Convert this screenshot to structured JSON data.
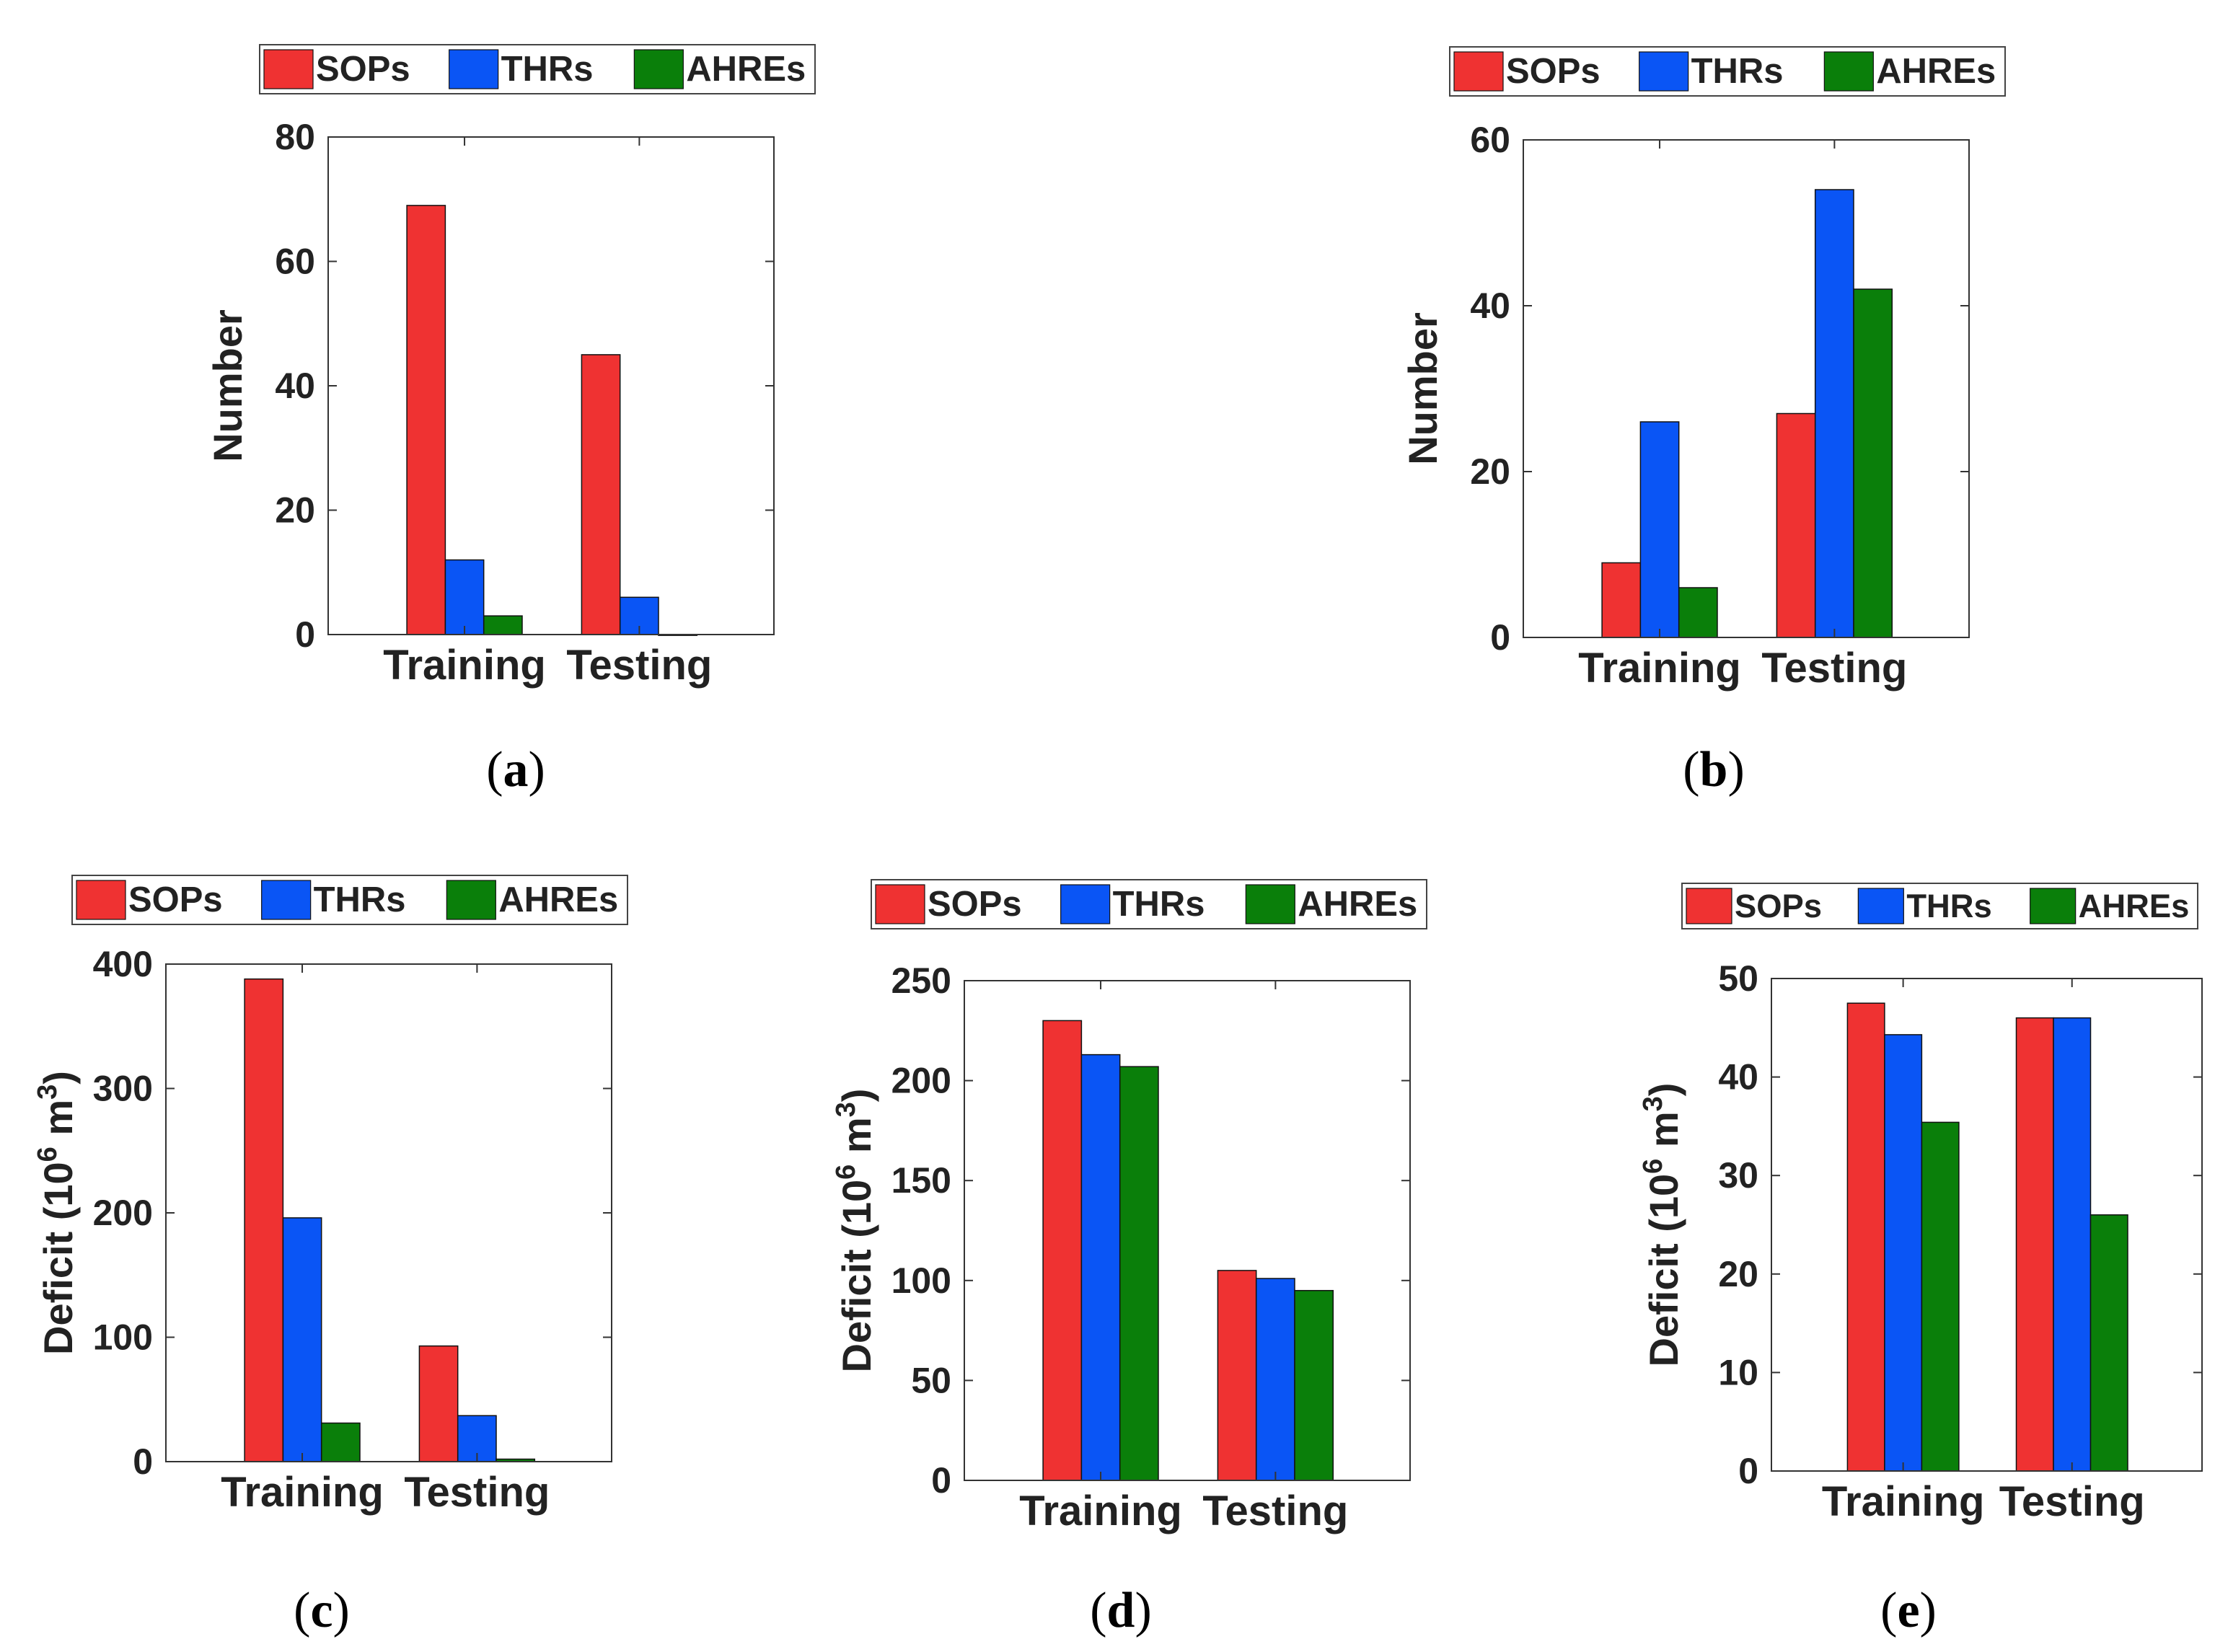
{
  "colors": {
    "SOPs": "#ef3232",
    "THRs": "#0a55f5",
    "AHREs": "#0a7f0a",
    "axis": "#333333",
    "text": "#222222"
  },
  "chart_data": [
    {
      "panel": "a",
      "type": "bar",
      "categories": [
        "Training",
        "Testing"
      ],
      "series": [
        {
          "name": "SOPs",
          "values": [
            69,
            45
          ]
        },
        {
          "name": "THRs",
          "values": [
            12,
            6
          ]
        },
        {
          "name": "AHREs",
          "values": [
            3,
            0
          ]
        }
      ],
      "ylabel": "Number",
      "ylabel_sup": "",
      "ylabel_tail": "",
      "ylim": [
        0,
        80
      ],
      "yticks": [
        0,
        20,
        40,
        60,
        80
      ],
      "legend": "top",
      "grid": false
    },
    {
      "panel": "b",
      "type": "bar",
      "categories": [
        "Training",
        "Testing"
      ],
      "series": [
        {
          "name": "SOPs",
          "values": [
            9,
            27
          ]
        },
        {
          "name": "THRs",
          "values": [
            26,
            54
          ]
        },
        {
          "name": "AHREs",
          "values": [
            6,
            42
          ]
        }
      ],
      "ylabel": "Number",
      "ylabel_sup": "",
      "ylabel_tail": "",
      "ylim": [
        0,
        60
      ],
      "yticks": [
        0,
        20,
        40,
        60
      ],
      "legend": "top",
      "grid": false
    },
    {
      "panel": "c",
      "type": "bar",
      "categories": [
        "Training",
        "Testing"
      ],
      "series": [
        {
          "name": "SOPs",
          "values": [
            388,
            93
          ]
        },
        {
          "name": "THRs",
          "values": [
            196,
            37
          ]
        },
        {
          "name": "AHREs",
          "values": [
            31,
            2
          ]
        }
      ],
      "ylabel": "Deficit (10",
      "ylabel_sup": "6",
      "ylabel_tail": " m",
      "ylabel_sup2": "3",
      "ylabel_end": ")",
      "ylim": [
        0,
        400
      ],
      "yticks": [
        0,
        100,
        200,
        300,
        400
      ],
      "legend": "top",
      "grid": false
    },
    {
      "panel": "d",
      "type": "bar",
      "categories": [
        "Training",
        "Testing"
      ],
      "series": [
        {
          "name": "SOPs",
          "values": [
            230,
            105
          ]
        },
        {
          "name": "THRs",
          "values": [
            213,
            101
          ]
        },
        {
          "name": "AHREs",
          "values": [
            207,
            95
          ]
        }
      ],
      "ylabel": "Deficit (10",
      "ylabel_sup": "6",
      "ylabel_tail": " m",
      "ylabel_sup2": "3",
      "ylabel_end": ")",
      "ylim": [
        0,
        250
      ],
      "yticks": [
        0,
        50,
        100,
        150,
        200,
        250
      ],
      "legend": "top",
      "grid": false
    },
    {
      "panel": "e",
      "type": "bar",
      "categories": [
        "Training",
        "Testing"
      ],
      "series": [
        {
          "name": "SOPs",
          "values": [
            47.5,
            46
          ]
        },
        {
          "name": "THRs",
          "values": [
            44.3,
            46
          ]
        },
        {
          "name": "AHREs",
          "values": [
            35.4,
            26
          ]
        }
      ],
      "ylabel": "Deficit (10",
      "ylabel_sup": "6",
      "ylabel_tail": " m",
      "ylabel_sup2": "3",
      "ylabel_end": ")",
      "ylim": [
        0,
        50
      ],
      "yticks": [
        0,
        10,
        20,
        30,
        40,
        50
      ],
      "legend": "top",
      "grid": false
    }
  ],
  "panel_labels": [
    {
      "open": "(",
      "letter": "a",
      "close": ")"
    },
    {
      "open": "(",
      "letter": "b",
      "close": ")"
    },
    {
      "open": "(",
      "letter": "c",
      "close": ")"
    },
    {
      "open": "(",
      "letter": "d",
      "close": ")"
    },
    {
      "open": "(",
      "letter": "e",
      "close": ")"
    }
  ]
}
